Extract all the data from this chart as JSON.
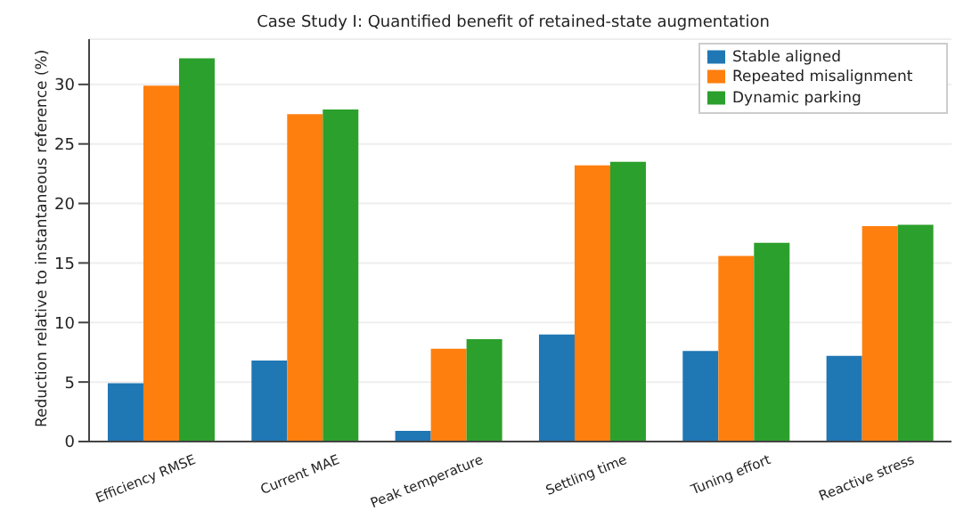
{
  "chart_data": {
    "type": "bar",
    "title": "Case Study I: Quantified benefit of retained-state augmentation",
    "ylabel": "Reduction relative to instantaneous reference (%)",
    "categories": [
      "Efficiency RMSE",
      "Current MAE",
      "Peak temperature",
      "Settling time",
      "Tuning effort",
      "Reactive stress"
    ],
    "series": [
      {
        "name": "Stable aligned",
        "color": "#1f77b4",
        "values": [
          4.9,
          6.8,
          0.9,
          9.0,
          7.6,
          7.2
        ]
      },
      {
        "name": "Repeated misalignment",
        "color": "#ff7f0e",
        "values": [
          29.9,
          27.5,
          7.8,
          23.2,
          15.6,
          18.1
        ]
      },
      {
        "name": "Dynamic parking",
        "color": "#2ca02c",
        "values": [
          32.2,
          27.9,
          8.6,
          23.5,
          16.7,
          18.2
        ]
      }
    ],
    "ylim": [
      0,
      33.8
    ],
    "yticks": [
      0,
      5,
      10,
      15,
      20,
      25,
      30
    ],
    "grid": "y",
    "legend": "top right"
  }
}
